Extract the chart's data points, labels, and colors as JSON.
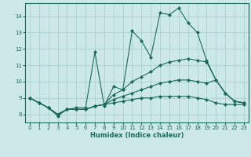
{
  "xlabel": "Humidex (Indice chaleur)",
  "bg_color": "#cce8e8",
  "line_color": "#1a6b5a",
  "grid_color": "#aacfcf",
  "xlim": [
    -0.5,
    23.5
  ],
  "ylim": [
    7.5,
    14.8
  ],
  "yticks": [
    8,
    9,
    10,
    11,
    12,
    13,
    14
  ],
  "xticks": [
    0,
    1,
    2,
    3,
    4,
    5,
    6,
    7,
    8,
    9,
    10,
    11,
    12,
    13,
    14,
    15,
    16,
    17,
    18,
    19,
    20,
    21,
    22,
    23
  ],
  "lines": [
    {
      "x": [
        0,
        1,
        2,
        3,
        4,
        5,
        6,
        7,
        8,
        9,
        10,
        11,
        12,
        13,
        14,
        15,
        16,
        17,
        18,
        19,
        20,
        21,
        22,
        23
      ],
      "y": [
        9.0,
        8.7,
        8.4,
        7.9,
        8.3,
        8.4,
        8.4,
        11.8,
        8.5,
        9.7,
        9.5,
        13.1,
        12.5,
        11.5,
        14.2,
        14.1,
        14.5,
        13.6,
        13.0,
        11.3,
        10.1,
        9.3,
        8.8,
        8.7
      ]
    },
    {
      "x": [
        0,
        1,
        2,
        3,
        4,
        5,
        6,
        7,
        8,
        9,
        10,
        11,
        12,
        13,
        14,
        15,
        16,
        17,
        18,
        19,
        20,
        21,
        22,
        23
      ],
      "y": [
        9.0,
        8.7,
        8.4,
        8.0,
        8.3,
        8.3,
        8.3,
        8.5,
        8.6,
        9.2,
        9.5,
        10.0,
        10.3,
        10.6,
        11.0,
        11.2,
        11.3,
        11.4,
        11.3,
        11.2,
        10.1,
        9.3,
        8.8,
        8.7
      ]
    },
    {
      "x": [
        0,
        1,
        2,
        3,
        4,
        5,
        6,
        7,
        8,
        9,
        10,
        11,
        12,
        13,
        14,
        15,
        16,
        17,
        18,
        19,
        20,
        21,
        22,
        23
      ],
      "y": [
        9.0,
        8.7,
        8.4,
        8.0,
        8.3,
        8.3,
        8.3,
        8.5,
        8.6,
        8.9,
        9.1,
        9.3,
        9.5,
        9.7,
        9.9,
        10.0,
        10.1,
        10.1,
        10.0,
        9.9,
        10.1,
        9.3,
        8.8,
        8.7
      ]
    },
    {
      "x": [
        0,
        1,
        2,
        3,
        4,
        5,
        6,
        7,
        8,
        9,
        10,
        11,
        12,
        13,
        14,
        15,
        16,
        17,
        18,
        19,
        20,
        21,
        22,
        23
      ],
      "y": [
        9.0,
        8.7,
        8.4,
        8.0,
        8.3,
        8.3,
        8.3,
        8.5,
        8.6,
        8.7,
        8.8,
        8.9,
        9.0,
        9.0,
        9.1,
        9.1,
        9.1,
        9.1,
        9.0,
        8.9,
        8.7,
        8.6,
        8.6,
        8.6
      ]
    }
  ]
}
